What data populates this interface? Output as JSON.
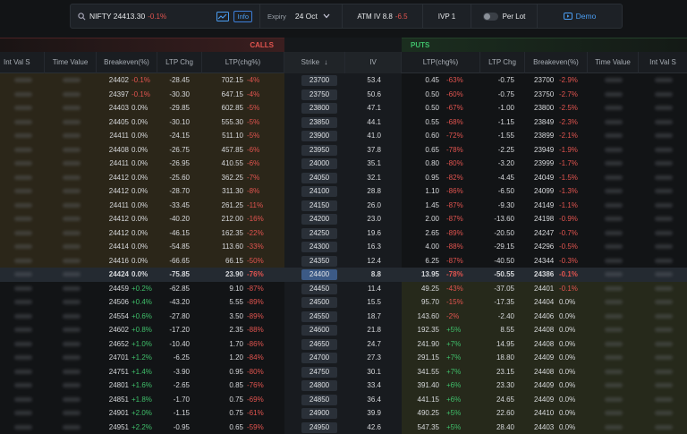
{
  "header": {
    "symbol": "NIFTY 24413.30",
    "change": "-0.1%",
    "info": "Info",
    "expiry_label": "Expiry",
    "expiry_value": "24 Oct",
    "atm_iv_label": "ATM IV 8.8",
    "atm_iv_change": "-6.5",
    "ivp": "IVP 1",
    "per_lot": "Per Lot",
    "demo": "Demo"
  },
  "sections": {
    "calls": "CALLS",
    "puts": "PUTS"
  },
  "columns": {
    "c_intval": "Int Val S",
    "c_timeval": "Time Value",
    "c_breakeven": "Breakeven(%)",
    "c_ltpchg": "LTP Chg",
    "c_ltp": "LTP(chg%)",
    "strike": "Strike",
    "iv": "IV",
    "p_ltp": "LTP(chg%)",
    "p_ltpchg": "LTP Chg",
    "p_breakeven": "Breakeven(%)",
    "p_timeval": "Time Value",
    "p_intval": "Int Val S"
  },
  "rows": [
    {
      "cbe": "24402",
      "cbep": "-0.1%",
      "cchg": "-28.45",
      "cltp": "702.15",
      "cltpp": "-4%",
      "strike": "23700",
      "iv": "53.4",
      "pltp": "0.45",
      "pltpp": "-63%",
      "pchg": "-0.75",
      "pbe": "23700",
      "pbep": "-2.9%"
    },
    {
      "cbe": "24397",
      "cbep": "-0.1%",
      "cchg": "-30.30",
      "cltp": "647.15",
      "cltpp": "-4%",
      "strike": "23750",
      "iv": "50.6",
      "pltp": "0.50",
      "pltpp": "-60%",
      "pchg": "-0.75",
      "pbe": "23750",
      "pbep": "-2.7%"
    },
    {
      "cbe": "24403",
      "cbep": "0.0%",
      "cchg": "-29.85",
      "cltp": "602.85",
      "cltpp": "-5%",
      "strike": "23800",
      "iv": "47.1",
      "pltp": "0.50",
      "pltpp": "-67%",
      "pchg": "-1.00",
      "pbe": "23800",
      "pbep": "-2.5%"
    },
    {
      "cbe": "24405",
      "cbep": "0.0%",
      "cchg": "-30.10",
      "cltp": "555.30",
      "cltpp": "-5%",
      "strike": "23850",
      "iv": "44.1",
      "pltp": "0.55",
      "pltpp": "-68%",
      "pchg": "-1.15",
      "pbe": "23849",
      "pbep": "-2.3%"
    },
    {
      "cbe": "24411",
      "cbep": "0.0%",
      "cchg": "-24.15",
      "cltp": "511.10",
      "cltpp": "-5%",
      "strike": "23900",
      "iv": "41.0",
      "pltp": "0.60",
      "pltpp": "-72%",
      "pchg": "-1.55",
      "pbe": "23899",
      "pbep": "-2.1%"
    },
    {
      "cbe": "24408",
      "cbep": "0.0%",
      "cchg": "-26.75",
      "cltp": "457.85",
      "cltpp": "-6%",
      "strike": "23950",
      "iv": "37.8",
      "pltp": "0.65",
      "pltpp": "-78%",
      "pchg": "-2.25",
      "pbe": "23949",
      "pbep": "-1.9%"
    },
    {
      "cbe": "24411",
      "cbep": "0.0%",
      "cchg": "-26.95",
      "cltp": "410.55",
      "cltpp": "-6%",
      "strike": "24000",
      "iv": "35.1",
      "pltp": "0.80",
      "pltpp": "-80%",
      "pchg": "-3.20",
      "pbe": "23999",
      "pbep": "-1.7%"
    },
    {
      "cbe": "24412",
      "cbep": "0.0%",
      "cchg": "-25.60",
      "cltp": "362.25",
      "cltpp": "-7%",
      "strike": "24050",
      "iv": "32.1",
      "pltp": "0.95",
      "pltpp": "-82%",
      "pchg": "-4.45",
      "pbe": "24049",
      "pbep": "-1.5%"
    },
    {
      "cbe": "24412",
      "cbep": "0.0%",
      "cchg": "-28.70",
      "cltp": "311.30",
      "cltpp": "-8%",
      "strike": "24100",
      "iv": "28.8",
      "pltp": "1.10",
      "pltpp": "-86%",
      "pchg": "-6.50",
      "pbe": "24099",
      "pbep": "-1.3%"
    },
    {
      "cbe": "24411",
      "cbep": "0.0%",
      "cchg": "-33.45",
      "cltp": "261.25",
      "cltpp": "-11%",
      "strike": "24150",
      "iv": "26.0",
      "pltp": "1.45",
      "pltpp": "-87%",
      "pchg": "-9.30",
      "pbe": "24149",
      "pbep": "-1.1%"
    },
    {
      "cbe": "24412",
      "cbep": "0.0%",
      "cchg": "-40.20",
      "cltp": "212.00",
      "cltpp": "-16%",
      "strike": "24200",
      "iv": "23.0",
      "pltp": "2.00",
      "pltpp": "-87%",
      "pchg": "-13.60",
      "pbe": "24198",
      "pbep": "-0.9%"
    },
    {
      "cbe": "24412",
      "cbep": "0.0%",
      "cchg": "-46.15",
      "cltp": "162.35",
      "cltpp": "-22%",
      "strike": "24250",
      "iv": "19.6",
      "pltp": "2.65",
      "pltpp": "-89%",
      "pchg": "-20.50",
      "pbe": "24247",
      "pbep": "-0.7%"
    },
    {
      "cbe": "24414",
      "cbep": "0.0%",
      "cchg": "-54.85",
      "cltp": "113.60",
      "cltpp": "-33%",
      "strike": "24300",
      "iv": "16.3",
      "pltp": "4.00",
      "pltpp": "-88%",
      "pchg": "-29.15",
      "pbe": "24296",
      "pbep": "-0.5%"
    },
    {
      "cbe": "24416",
      "cbep": "0.0%",
      "cchg": "-66.65",
      "cltp": "66.15",
      "cltpp": "-50%",
      "strike": "24350",
      "iv": "12.4",
      "pltp": "6.25",
      "pltpp": "-87%",
      "pchg": "-40.50",
      "pbe": "24344",
      "pbep": "-0.3%"
    },
    {
      "cbe": "24424",
      "cbep": "0.0%",
      "cchg": "-75.85",
      "cltp": "23.90",
      "cltpp": "-76%",
      "strike": "24400",
      "iv": "8.8",
      "pltp": "13.95",
      "pltpp": "-78%",
      "pchg": "-50.55",
      "pbe": "24386",
      "pbep": "-0.1%",
      "atm": true
    },
    {
      "cbe": "24459",
      "cbep": "+0.2%",
      "cchg": "-62.85",
      "cltp": "9.10",
      "cltpp": "-87%",
      "strike": "24450",
      "iv": "11.4",
      "pltp": "49.25",
      "pltpp": "-43%",
      "pchg": "-37.05",
      "pbe": "24401",
      "pbep": "-0.1%"
    },
    {
      "cbe": "24506",
      "cbep": "+0.4%",
      "cchg": "-43.20",
      "cltp": "5.55",
      "cltpp": "-89%",
      "strike": "24500",
      "iv": "15.5",
      "pltp": "95.70",
      "pltpp": "-15%",
      "pchg": "-17.35",
      "pbe": "24404",
      "pbep": "0.0%"
    },
    {
      "cbe": "24554",
      "cbep": "+0.6%",
      "cchg": "-27.80",
      "cltp": "3.50",
      "cltpp": "-89%",
      "strike": "24550",
      "iv": "18.7",
      "pltp": "143.60",
      "pltpp": "-2%",
      "pchg": "-2.40",
      "pbe": "24406",
      "pbep": "0.0%"
    },
    {
      "cbe": "24602",
      "cbep": "+0.8%",
      "cchg": "-17.20",
      "cltp": "2.35",
      "cltpp": "-88%",
      "strike": "24600",
      "iv": "21.8",
      "pltp": "192.35",
      "pltpp": "+5%",
      "pchg": "8.55",
      "pbe": "24408",
      "pbep": "0.0%"
    },
    {
      "cbe": "24652",
      "cbep": "+1.0%",
      "cchg": "-10.40",
      "cltp": "1.70",
      "cltpp": "-86%",
      "strike": "24650",
      "iv": "24.7",
      "pltp": "241.90",
      "pltpp": "+7%",
      "pchg": "14.95",
      "pbe": "24408",
      "pbep": "0.0%"
    },
    {
      "cbe": "24701",
      "cbep": "+1.2%",
      "cchg": "-6.25",
      "cltp": "1.20",
      "cltpp": "-84%",
      "strike": "24700",
      "iv": "27.3",
      "pltp": "291.15",
      "pltpp": "+7%",
      "pchg": "18.80",
      "pbe": "24409",
      "pbep": "0.0%"
    },
    {
      "cbe": "24751",
      "cbep": "+1.4%",
      "cchg": "-3.90",
      "cltp": "0.95",
      "cltpp": "-80%",
      "strike": "24750",
      "iv": "30.1",
      "pltp": "341.55",
      "pltpp": "+7%",
      "pchg": "23.15",
      "pbe": "24408",
      "pbep": "0.0%"
    },
    {
      "cbe": "24801",
      "cbep": "+1.6%",
      "cchg": "-2.65",
      "cltp": "0.85",
      "cltpp": "-76%",
      "strike": "24800",
      "iv": "33.4",
      "pltp": "391.40",
      "pltpp": "+6%",
      "pchg": "23.30",
      "pbe": "24409",
      "pbep": "0.0%"
    },
    {
      "cbe": "24851",
      "cbep": "+1.8%",
      "cchg": "-1.70",
      "cltp": "0.75",
      "cltpp": "-69%",
      "strike": "24850",
      "iv": "36.4",
      "pltp": "441.15",
      "pltpp": "+6%",
      "pchg": "24.65",
      "pbe": "24409",
      "pbep": "0.0%"
    },
    {
      "cbe": "24901",
      "cbep": "+2.0%",
      "cchg": "-1.15",
      "cltp": "0.75",
      "cltpp": "-61%",
      "strike": "24900",
      "iv": "39.9",
      "pltp": "490.25",
      "pltpp": "+5%",
      "pchg": "22.60",
      "pbe": "24410",
      "pbep": "0.0%"
    },
    {
      "cbe": "24951",
      "cbep": "+2.2%",
      "cchg": "-0.95",
      "cltp": "0.65",
      "cltpp": "-59%",
      "strike": "24950",
      "iv": "42.6",
      "pltp": "547.35",
      "pltpp": "+5%",
      "pchg": "28.40",
      "pbe": "24403",
      "pbep": "0.0%"
    }
  ],
  "colors": {
    "calls_itm_bg": "#2b2619",
    "puts_itm_bg": "#26291b",
    "neg": "#e2544f",
    "pos": "#3fbf6a",
    "accent": "#4a9cf0"
  }
}
